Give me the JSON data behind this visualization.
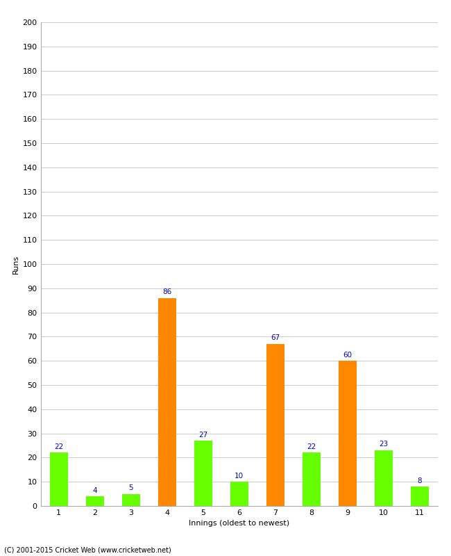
{
  "xlabel": "Innings (oldest to newest)",
  "ylabel": "Runs",
  "categories": [
    "1",
    "2",
    "3",
    "4",
    "5",
    "6",
    "7",
    "8",
    "9",
    "10",
    "11"
  ],
  "values": [
    22,
    4,
    5,
    86,
    27,
    10,
    67,
    22,
    60,
    23,
    8
  ],
  "bar_colors": [
    "#66ff00",
    "#66ff00",
    "#66ff00",
    "#ff8800",
    "#66ff00",
    "#66ff00",
    "#ff8800",
    "#66ff00",
    "#ff8800",
    "#66ff00",
    "#66ff00"
  ],
  "ylim": [
    0,
    200
  ],
  "ytick_step": 10,
  "label_color": "#0000cc",
  "label_fontsize": 7.5,
  "axis_label_fontsize": 8,
  "tick_fontsize": 8,
  "background_color": "#ffffff",
  "grid_color": "#cccccc",
  "footer": "(C) 2001-2015 Cricket Web (www.cricketweb.net)",
  "bar_width": 0.5
}
